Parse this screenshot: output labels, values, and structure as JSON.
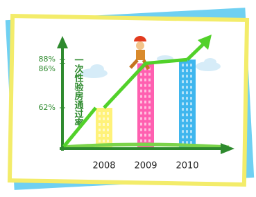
{
  "chart_data": {
    "type": "bar",
    "title": "一次性验房通过率",
    "categories": [
      "2008",
      "2009",
      "2010"
    ],
    "values": [
      62,
      86,
      88
    ],
    "colors": [
      "#fff27a",
      "#ff5fb0",
      "#3fb6ee"
    ],
    "line_color": "#52d12a",
    "ylim": [
      40,
      100
    ],
    "yticks": [
      {
        "value": 62,
        "label": "62%"
      },
      {
        "value": 86,
        "label": "86%"
      },
      {
        "value": 88,
        "label": "88%"
      }
    ]
  }
}
